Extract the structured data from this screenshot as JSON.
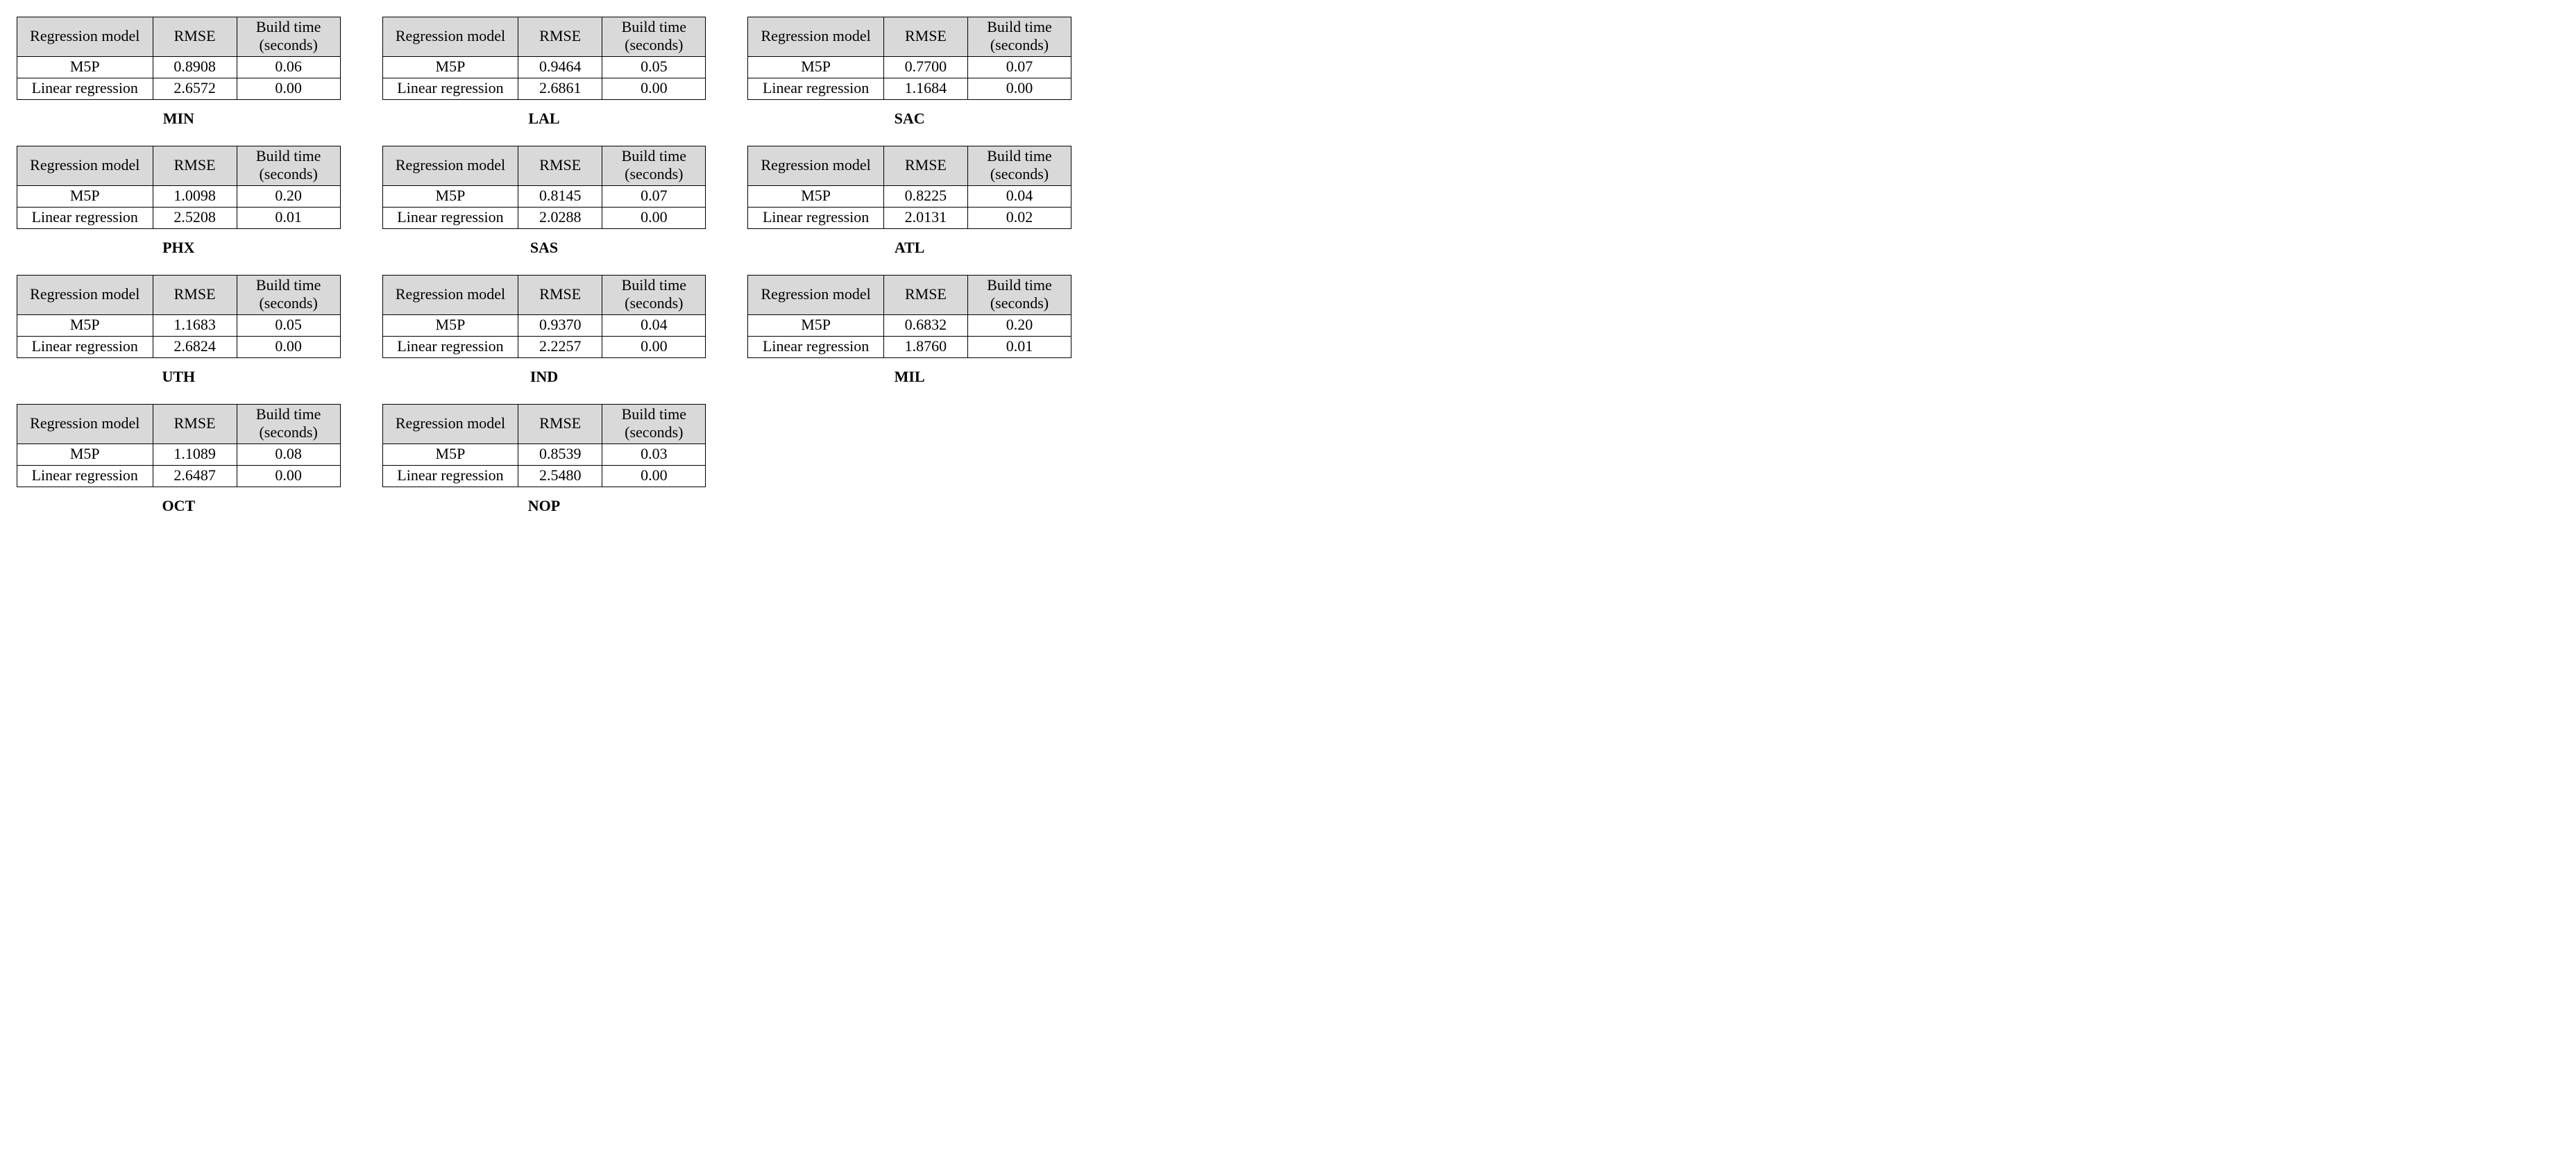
{
  "headers": {
    "model": "Regression model",
    "rmse": "RMSE",
    "time": "Build time (seconds)"
  },
  "row_labels": {
    "m5p": "M5P",
    "lr": "Linear regression"
  },
  "colors": {
    "header_bg": "#d9d9d9",
    "border": "#000000",
    "text": "#000000",
    "page_bg": "#ffffff"
  },
  "tables": [
    {
      "code": "MIN",
      "m5p": {
        "rmse": "0.8908",
        "time": "0.06"
      },
      "lr": {
        "rmse": "2.6572",
        "time": "0.00"
      }
    },
    {
      "code": "LAL",
      "m5p": {
        "rmse": "0.9464",
        "time": "0.05"
      },
      "lr": {
        "rmse": "2.6861",
        "time": "0.00"
      }
    },
    {
      "code": "SAC",
      "m5p": {
        "rmse": "0.7700",
        "time": "0.07"
      },
      "lr": {
        "rmse": "1.1684",
        "time": "0.00"
      }
    },
    {
      "code": "PHX",
      "m5p": {
        "rmse": "1.0098",
        "time": "0.20"
      },
      "lr": {
        "rmse": "2.5208",
        "time": "0.01"
      }
    },
    {
      "code": "SAS",
      "m5p": {
        "rmse": "0.8145",
        "time": "0.07"
      },
      "lr": {
        "rmse": "2.0288",
        "time": "0.00"
      }
    },
    {
      "code": "ATL",
      "m5p": {
        "rmse": "0.8225",
        "time": "0.04"
      },
      "lr": {
        "rmse": "2.0131",
        "time": "0.02"
      }
    },
    {
      "code": "UTH",
      "m5p": {
        "rmse": "1.1683",
        "time": "0.05"
      },
      "lr": {
        "rmse": "2.6824",
        "time": "0.00"
      }
    },
    {
      "code": "IND",
      "m5p": {
        "rmse": "0.9370",
        "time": "0.04"
      },
      "lr": {
        "rmse": "2.2257",
        "time": "0.00"
      }
    },
    {
      "code": "MIL",
      "m5p": {
        "rmse": "0.6832",
        "time": "0.20"
      },
      "lr": {
        "rmse": "1.8760",
        "time": "0.01"
      }
    },
    {
      "code": "OCT",
      "m5p": {
        "rmse": "1.1089",
        "time": "0.08"
      },
      "lr": {
        "rmse": "2.6487",
        "time": "0.00"
      }
    },
    {
      "code": "NOP",
      "m5p": {
        "rmse": "0.8539",
        "time": "0.03"
      },
      "lr": {
        "rmse": "2.5480",
        "time": "0.00"
      }
    }
  ]
}
